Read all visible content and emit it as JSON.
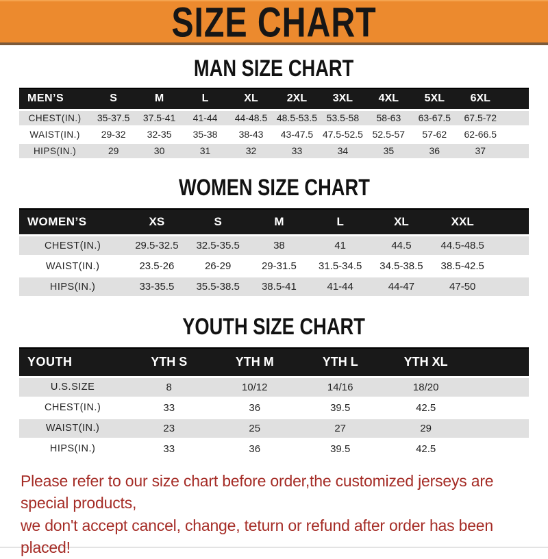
{
  "banner": {
    "title": "SIZE CHART"
  },
  "colors": {
    "banner_bg": "#EC8A2E",
    "banner_text": "#161616",
    "table_bar_bg": "#191919",
    "row_gray": "#E0E0E0",
    "note_red": "#A52C26"
  },
  "men_chart": {
    "heading": "MAN SIZE CHART",
    "header": [
      "MEN’S",
      "S",
      "M",
      "L",
      "XL",
      "2XL",
      "3XL",
      "4XL",
      "5XL",
      "6XL"
    ],
    "rows": [
      [
        "CHEST(IN.)",
        "35-37.5",
        "37.5-41",
        "41-44",
        "44-48.5",
        "48.5-53.5",
        "53.5-58",
        "58-63",
        "63-67.5",
        "67.5-72"
      ],
      [
        "WAIST(IN.)",
        "29-32",
        "32-35",
        "35-38",
        "38-43",
        "43-47.5",
        "47.5-52.5",
        "52.5-57",
        "57-62",
        "62-66.5"
      ],
      [
        "HIPS(IN.)",
        "29",
        "30",
        "31",
        "32",
        "33",
        "34",
        "35",
        "36",
        "37"
      ]
    ]
  },
  "women_chart": {
    "heading": "WOMEN SIZE CHART",
    "header": [
      "WOMEN’S",
      "XS",
      "S",
      "M",
      "L",
      "XL",
      "XXL"
    ],
    "rows": [
      [
        "CHEST(IN.)",
        "29.5-32.5",
        "32.5-35.5",
        "38",
        "41",
        "44.5",
        "44.5-48.5"
      ],
      [
        "WAIST(IN.)",
        "23.5-26",
        "26-29",
        "29-31.5",
        "31.5-34.5",
        "34.5-38.5",
        "38.5-42.5"
      ],
      [
        "HIPS(IN.)",
        "33-35.5",
        "35.5-38.5",
        "38.5-41",
        "41-44",
        "44-47",
        "47-50"
      ]
    ]
  },
  "youth_chart": {
    "heading": "YOUTH SIZE CHART",
    "header": [
      "YOUTH",
      "YTH S",
      "YTH M",
      "YTH L",
      "YTH XL"
    ],
    "rows": [
      [
        "U.S.SIZE",
        "8",
        "10/12",
        "14/16",
        "18/20"
      ],
      [
        "CHEST(IN.)",
        "33",
        "36",
        "39.5",
        "42.5"
      ],
      [
        "WAIST(IN.)",
        "23",
        "25",
        "27",
        "29"
      ],
      [
        "HIPS(IN.)",
        "33",
        "36",
        "39.5",
        "42.5"
      ]
    ]
  },
  "footer": {
    "line1": "Please refer to our size chart before order,the customized jerseys are special products,",
    "line2": "we don't accept cancel, change, teturn or refund after order has been placed!"
  }
}
